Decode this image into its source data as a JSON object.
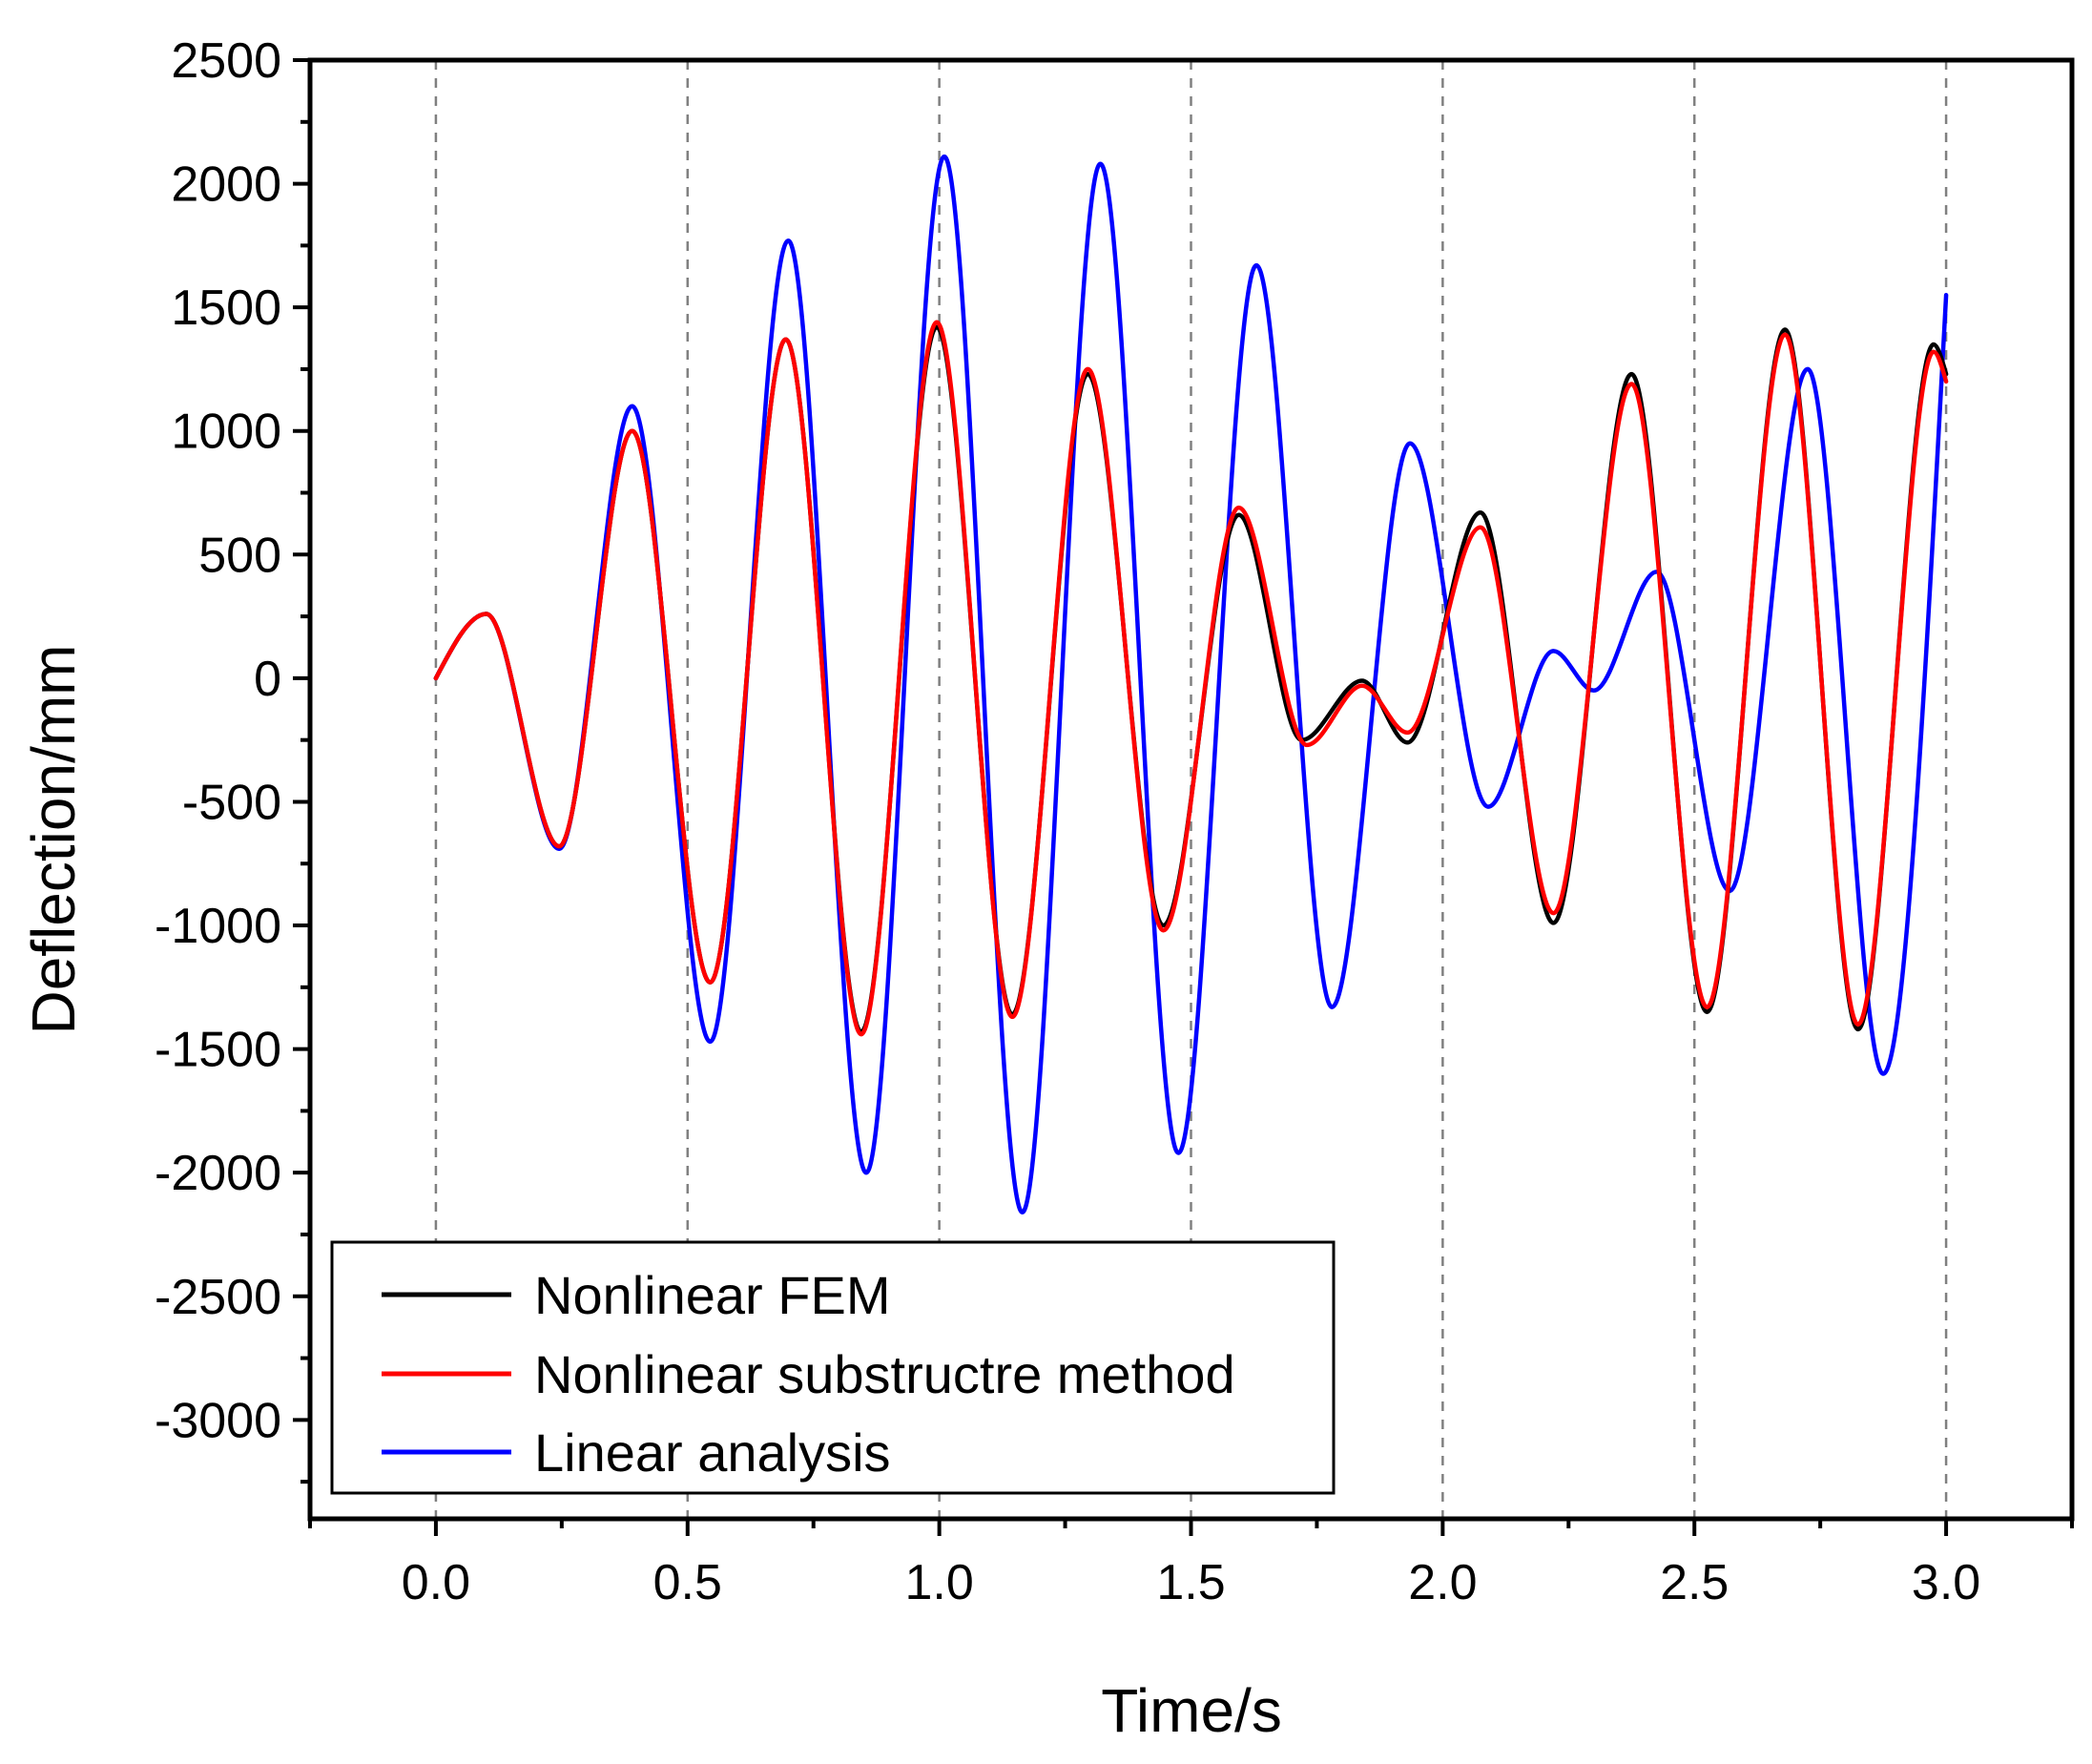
{
  "chart_data": {
    "type": "line",
    "title": "",
    "xlabel": "Time/s",
    "ylabel": "Deflection/mm",
    "xlim": [
      -0.25,
      3.25
    ],
    "ylim": [
      -3400,
      2500
    ],
    "x_ticks": [
      "0.0",
      "0.5",
      "1.0",
      "1.5",
      "2.0",
      "2.5",
      "3.0"
    ],
    "x_tick_values": [
      0,
      0.5,
      1.0,
      1.5,
      2.0,
      2.5,
      3.0
    ],
    "y_ticks": [
      "2500",
      "2000",
      "1500",
      "1000",
      "500",
      "0",
      "-500",
      "-1000",
      "-1500",
      "-2000",
      "-2500",
      "-3000"
    ],
    "y_tick_values": [
      2500,
      2000,
      1500,
      1000,
      500,
      0,
      -500,
      -1000,
      -1500,
      -2000,
      -2500,
      -3000
    ],
    "grid": "vertical dashed at x ticks",
    "legend_position": "bottom-left",
    "series": [
      {
        "name": "Nonlinear FEM",
        "color": "#000000",
        "points": [
          [
            0,
            0
          ],
          [
            0.1,
            260
          ],
          [
            0.245,
            -680
          ],
          [
            0.39,
            1000
          ],
          [
            0.545,
            -1230
          ],
          [
            0.695,
            1370
          ],
          [
            0.845,
            -1430
          ],
          [
            0.995,
            1420
          ],
          [
            1.145,
            -1360
          ],
          [
            1.295,
            1230
          ],
          [
            1.445,
            -1000
          ],
          [
            1.595,
            660
          ],
          [
            1.72,
            -250
          ],
          [
            1.84,
            -10
          ],
          [
            1.93,
            -260
          ],
          [
            2.075,
            670
          ],
          [
            2.22,
            -990
          ],
          [
            2.375,
            1230
          ],
          [
            2.525,
            -1350
          ],
          [
            2.68,
            1410
          ],
          [
            2.825,
            -1420
          ],
          [
            2.975,
            1350
          ],
          [
            3.0,
            1230
          ]
        ]
      },
      {
        "name": "Nonlinear substructre method",
        "color": "#ff0000",
        "points": [
          [
            0,
            0
          ],
          [
            0.1,
            260
          ],
          [
            0.245,
            -680
          ],
          [
            0.39,
            1000
          ],
          [
            0.545,
            -1230
          ],
          [
            0.695,
            1370
          ],
          [
            0.845,
            -1440
          ],
          [
            0.995,
            1440
          ],
          [
            1.145,
            -1370
          ],
          [
            1.295,
            1250
          ],
          [
            1.445,
            -1020
          ],
          [
            1.595,
            690
          ],
          [
            1.73,
            -270
          ],
          [
            1.84,
            -30
          ],
          [
            1.93,
            -220
          ],
          [
            2.075,
            610
          ],
          [
            2.22,
            -950
          ],
          [
            2.375,
            1190
          ],
          [
            2.525,
            -1330
          ],
          [
            2.68,
            1390
          ],
          [
            2.825,
            -1400
          ],
          [
            2.975,
            1320
          ],
          [
            3.0,
            1200
          ]
        ]
      },
      {
        "name": "Linear analysis",
        "color": "#0000ff",
        "points": [
          [
            0,
            0
          ],
          [
            0.1,
            260
          ],
          [
            0.245,
            -690
          ],
          [
            0.39,
            1100
          ],
          [
            0.545,
            -1470
          ],
          [
            0.7,
            1770
          ],
          [
            0.855,
            -2000
          ],
          [
            1.01,
            2110
          ],
          [
            1.165,
            -2160
          ],
          [
            1.32,
            2080
          ],
          [
            1.475,
            -1920
          ],
          [
            1.63,
            1670
          ],
          [
            1.78,
            -1330
          ],
          [
            1.935,
            950
          ],
          [
            2.09,
            -520
          ],
          [
            2.22,
            110
          ],
          [
            2.3,
            -50
          ],
          [
            2.425,
            430
          ],
          [
            2.57,
            -860
          ],
          [
            2.725,
            1250
          ],
          [
            2.875,
            -1600
          ],
          [
            3.0,
            1550
          ]
        ]
      }
    ]
  }
}
